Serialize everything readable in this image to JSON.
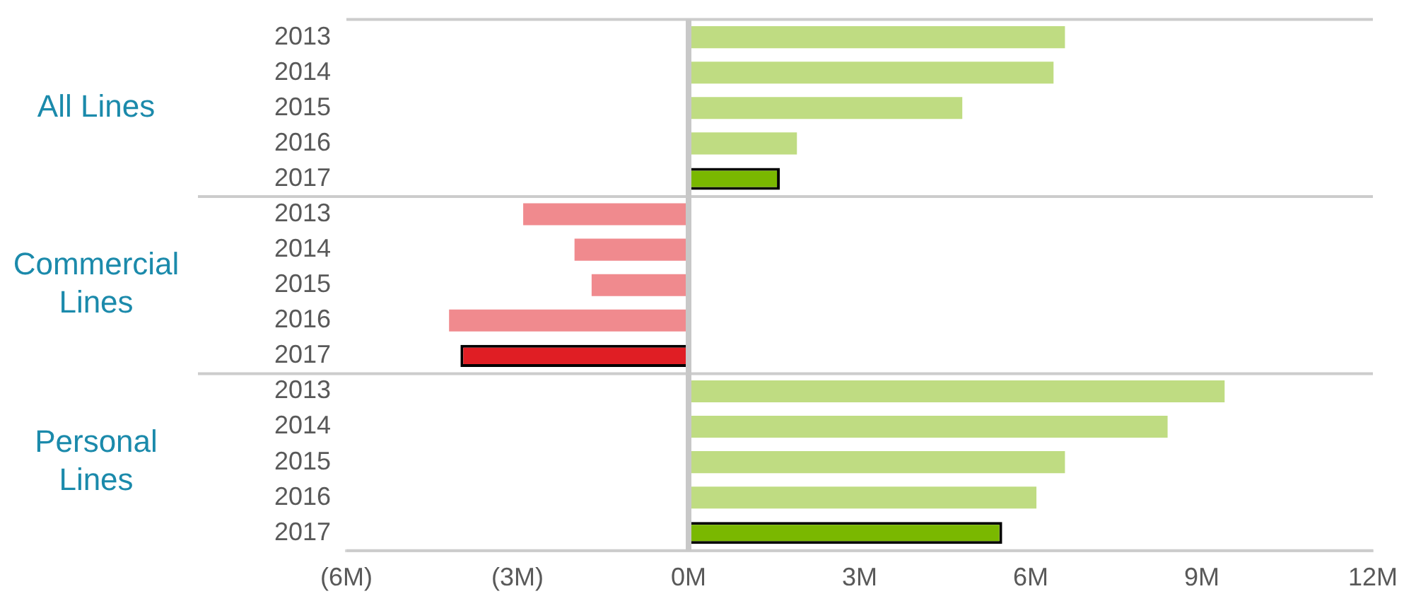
{
  "chart_data": {
    "type": "bar",
    "orientation": "horizontal",
    "categories": [
      "2013",
      "2014",
      "2015",
      "2016",
      "2017",
      "2013",
      "2014",
      "2015",
      "2016",
      "2017",
      "2013",
      "2014",
      "2015",
      "2016",
      "2017"
    ],
    "values": [
      6.6,
      6.4,
      4.8,
      1.9,
      1.6,
      -2.9,
      -2.0,
      -1.7,
      -4.2,
      -4.0,
      9.4,
      8.4,
      6.6,
      6.1,
      5.5
    ],
    "colors": [
      "#bfdc82",
      "#bfdc82",
      "#bfdc82",
      "#bfdc82",
      "#7ab800",
      "#f08a8e",
      "#f08a8e",
      "#f08a8e",
      "#f08a8e",
      "#e01e24",
      "#bfdc82",
      "#bfdc82",
      "#bfdc82",
      "#bfdc82",
      "#7ab800"
    ],
    "xlim": [
      -6,
      12
    ],
    "xticks": [
      {
        "value": -6,
        "label": "(6M)"
      },
      {
        "value": -3,
        "label": "(3M)"
      },
      {
        "value": 0,
        "label": "0M"
      },
      {
        "value": 3,
        "label": "3M"
      },
      {
        "value": 6,
        "label": "6M"
      },
      {
        "value": 9,
        "label": "9M"
      },
      {
        "value": 12,
        "label": "12M"
      }
    ],
    "annotations": [
      "All Lines",
      "Commercial Lines",
      "Personal Lines"
    ],
    "grid": false,
    "legend": false
  }
}
